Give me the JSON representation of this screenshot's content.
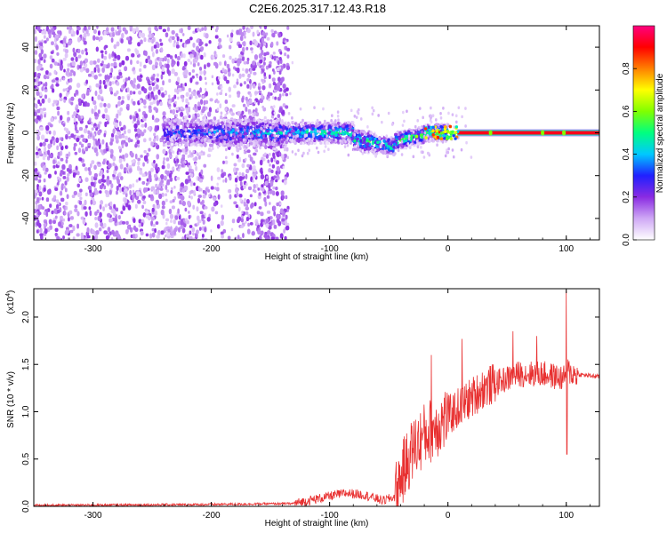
{
  "figure": {
    "title": "C2E6.2025.317.12.43.R18"
  },
  "chart_data": [
    {
      "type": "heatmap",
      "xlabel": "Height of straight line (km)",
      "ylabel": "Frequency (Hz)",
      "xlim": [
        -350,
        128
      ],
      "ylim": [
        -50,
        50
      ],
      "xticks": [
        -300,
        -200,
        -100,
        0,
        100
      ],
      "yticks": [
        -40,
        -20,
        0,
        20,
        40
      ],
      "colorbar": {
        "label": "Normalized spectral amplitude",
        "range": [
          0,
          1
        ],
        "ticks": [
          "0.0",
          "0.2",
          "0.4",
          "0.6",
          "0.8"
        ],
        "colors": [
          "#ffffff",
          "#cfa8f5",
          "#8a2be2",
          "#2020ff",
          "#00c8ff",
          "#00ff80",
          "#80ff00",
          "#ffff00",
          "#ff8000",
          "#ff0000",
          "#ff0080"
        ]
      },
      "features": [
        {
          "x_range": [
            -350,
            -135
          ],
          "description_only": true
        },
        {
          "x_range": [
            -240,
            0
          ],
          "freq_range": [
            -10,
            5
          ]
        },
        {
          "x_range": [
            0,
            128
          ],
          "freq_center": 0
        }
      ]
    },
    {
      "type": "line",
      "xlabel": "Height of straight line (km)",
      "ylabel": "SNR (10 * v/v)",
      "scale_label": "(x10",
      "scale_exp": "4",
      "scale_close": ")",
      "xlim": [
        -350,
        128
      ],
      "ylim": [
        0,
        2.3
      ],
      "xticks": [
        -300,
        -200,
        -100,
        0,
        100
      ],
      "yticks": [
        "0.0",
        "0.5",
        "1.0",
        "1.5",
        "2.0"
      ],
      "series_color": "#e83030",
      "envelope_x": [
        -350,
        -200,
        -130,
        -110,
        -95,
        -85,
        -70,
        -55,
        -45,
        -40,
        -30,
        -20,
        -10,
        0,
        10,
        20,
        30,
        40,
        60,
        80,
        98,
        100,
        105,
        128
      ],
      "envelope_y": [
        0.01,
        0.02,
        0.03,
        0.08,
        0.12,
        0.14,
        0.12,
        0.06,
        0.1,
        0.3,
        0.6,
        0.75,
        0.85,
        0.95,
        1.05,
        1.15,
        1.25,
        1.3,
        1.4,
        1.4,
        1.35,
        1.45,
        1.4,
        1.37
      ],
      "spikes": [
        [
          -14,
          1.6
        ],
        [
          12,
          1.77
        ],
        [
          55,
          1.85
        ],
        [
          100,
          2.28
        ],
        [
          100.5,
          0.55
        ],
        [
          75,
          1.8
        ]
      ]
    }
  ]
}
